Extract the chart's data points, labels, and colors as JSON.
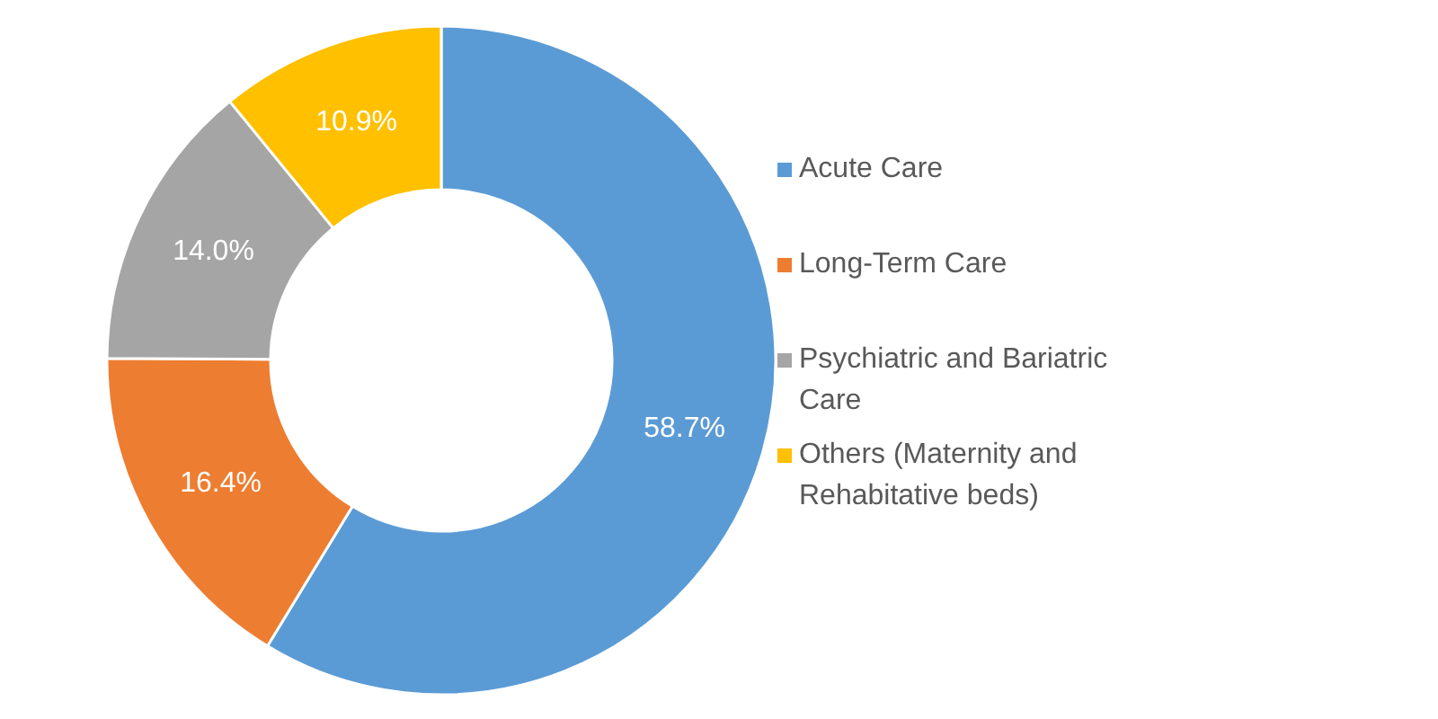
{
  "chart_data": {
    "type": "donut",
    "categories": [
      "Acute Care",
      "Long-Term Care",
      "Psychiatric and Bariatric Care",
      "Others (Maternity and Rehabitative beds)"
    ],
    "values": [
      58.7,
      16.4,
      14.0,
      10.9
    ],
    "colors": [
      "#5b9bd5",
      "#ed7d31",
      "#a5a5a5",
      "#ffc000"
    ],
    "value_labels": [
      "58.7%",
      "16.4%",
      "14.0%",
      "10.9%"
    ],
    "legend": "right"
  }
}
